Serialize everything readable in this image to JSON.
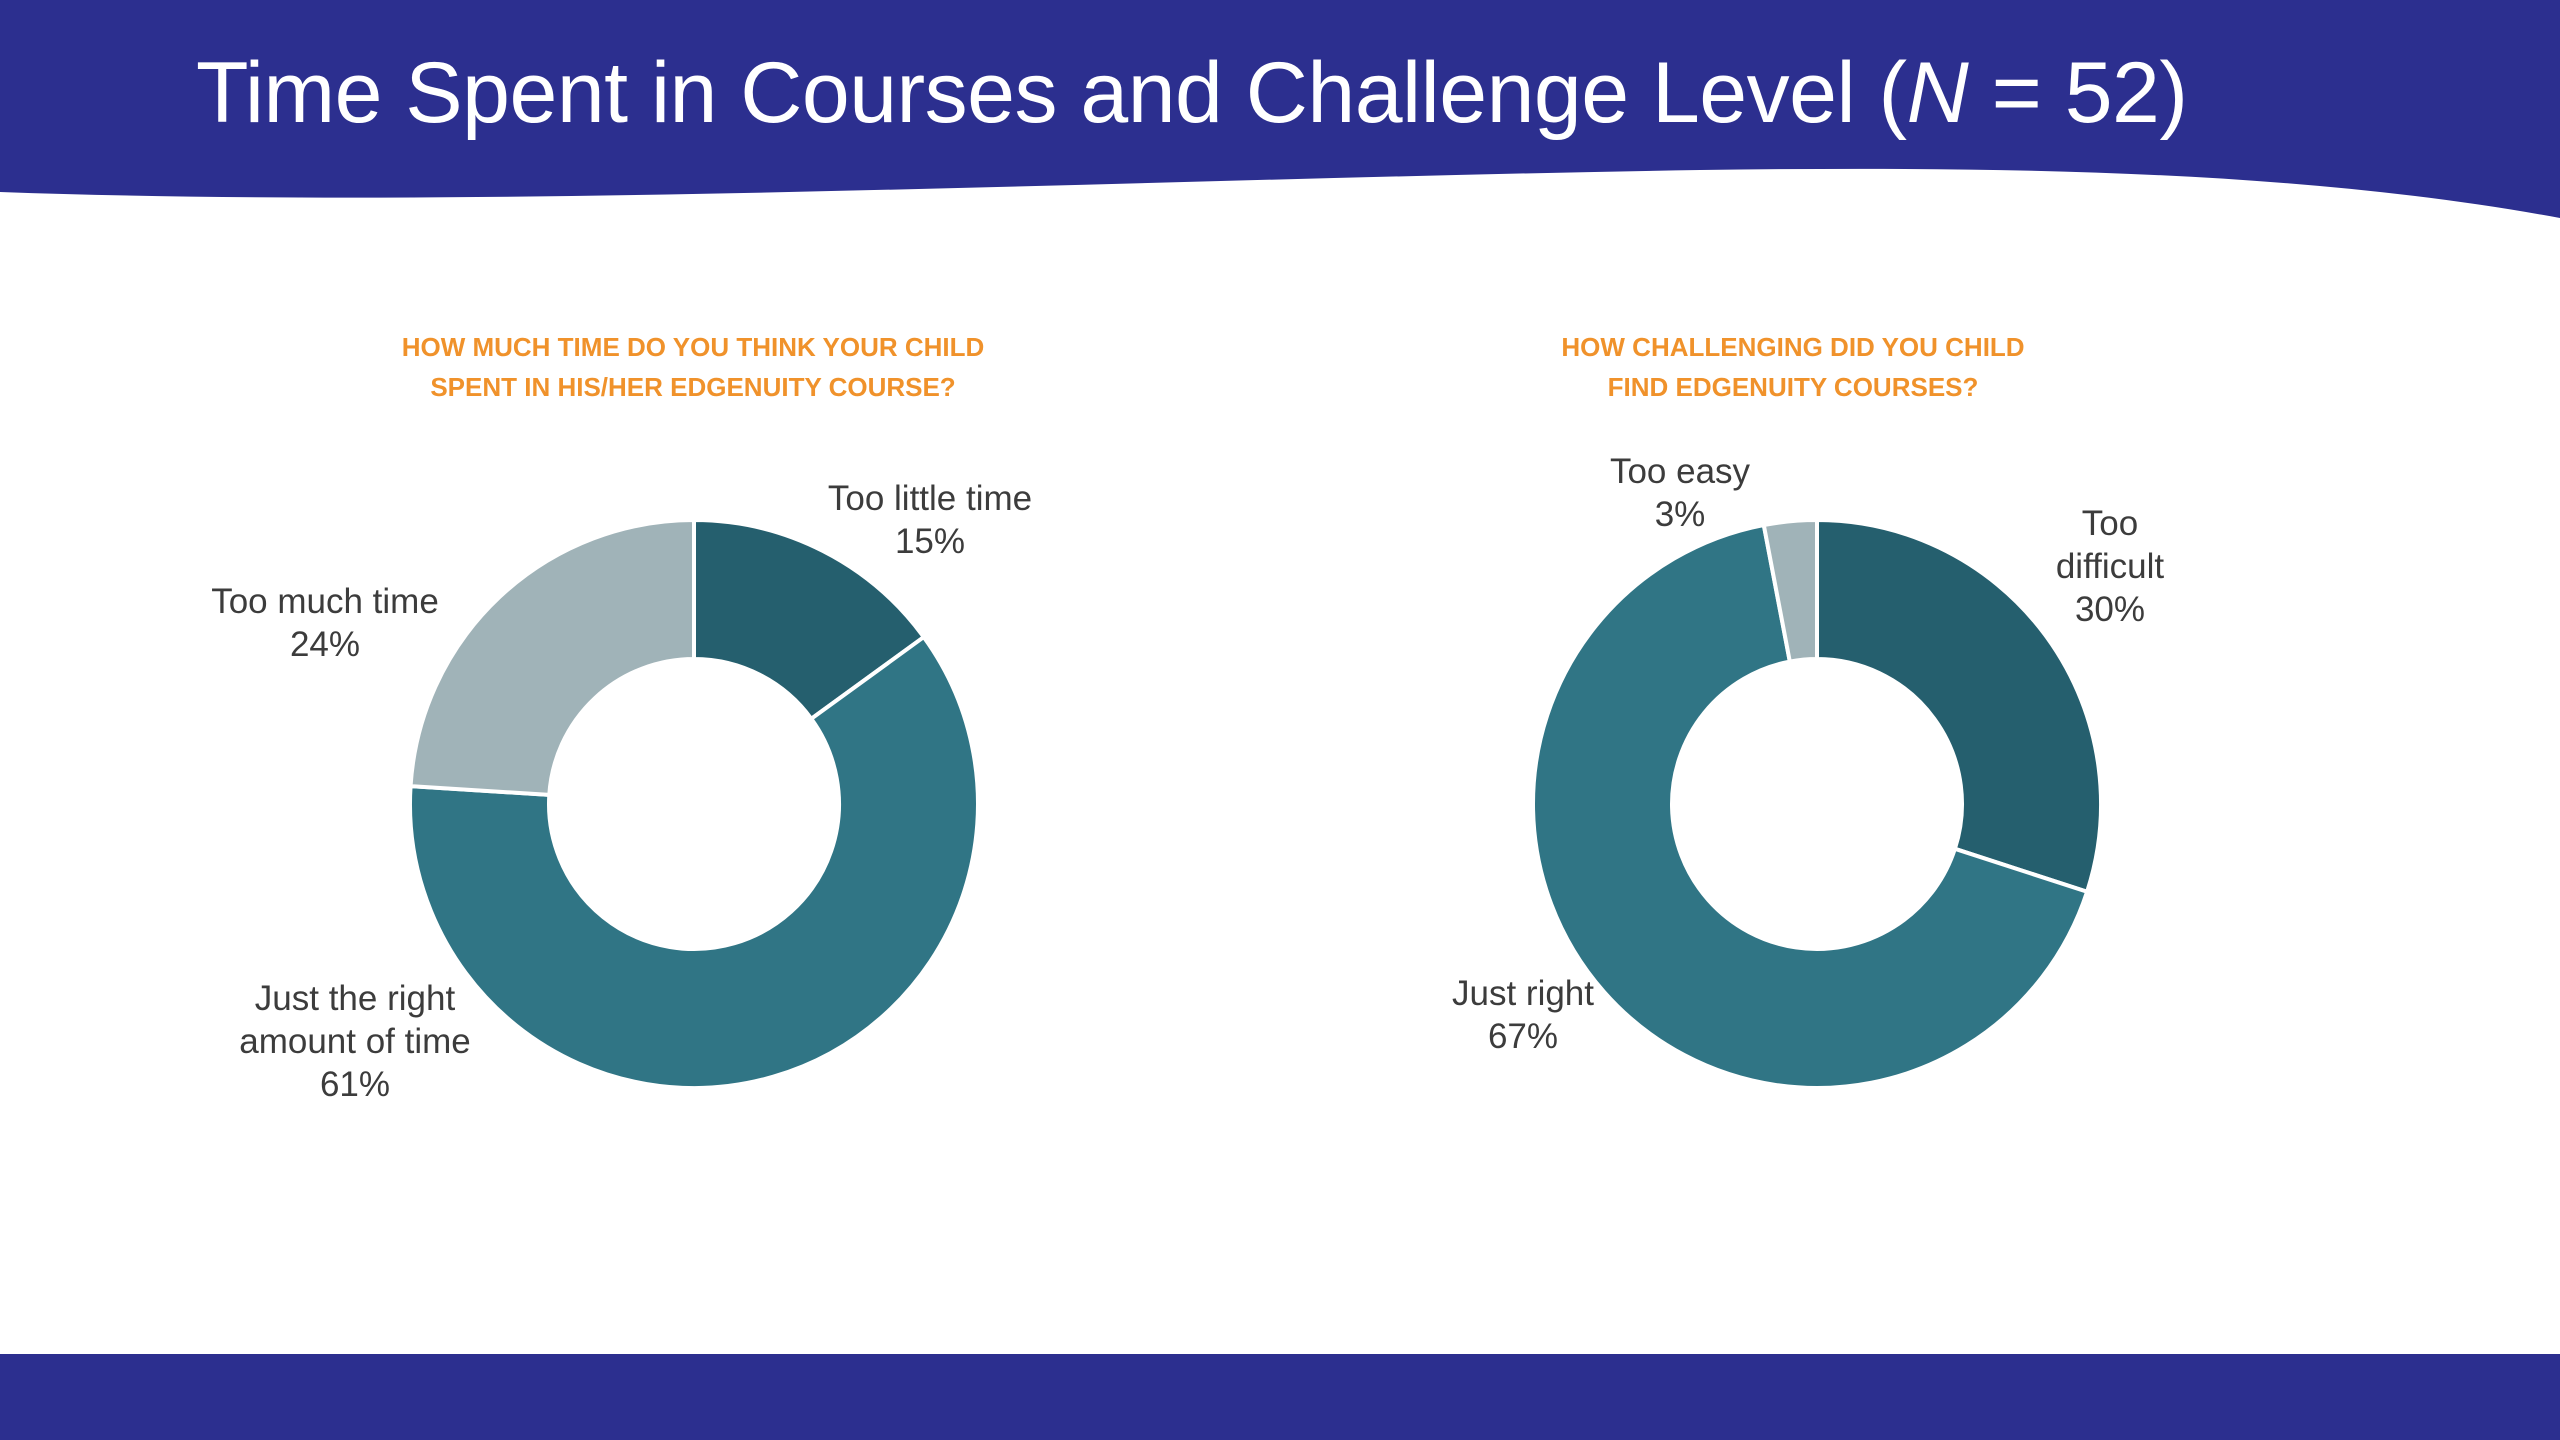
{
  "slide": {
    "title_prefix": "Time Spent in Courses and Challenge Level (",
    "title_n": "N",
    "title_suffix": " = 52)",
    "colors": {
      "header": "#2c2f8f",
      "question": "#f0922b",
      "dark_teal": "#255f6e",
      "mid_teal": "#307585",
      "light_gray": "#a0b3b8"
    }
  },
  "chart_data": [
    {
      "type": "pie",
      "style": "donut",
      "title": "HOW MUCH TIME DO YOU THINK YOUR CHILD\nSPENT IN HIS/HER EDGENUITY COURSE?",
      "categories": [
        "Too little time",
        "Just the right amount of time",
        "Too much time"
      ],
      "values": [
        15,
        61,
        24
      ],
      "unit": "%",
      "colors": [
        "#255f6e",
        "#307585",
        "#a0b3b8"
      ],
      "labels": [
        "Too little time\n15%",
        "Just the right\namount of time\n61%",
        "Too much time\n24%"
      ]
    },
    {
      "type": "pie",
      "style": "donut",
      "title": "HOW CHALLENGING DID YOU CHILD\nFIND EDGENUITY COURSES?",
      "categories": [
        "Too difficult",
        "Just right",
        "Too easy"
      ],
      "values": [
        30,
        67,
        3
      ],
      "unit": "%",
      "colors": [
        "#255f6e",
        "#307585",
        "#a0b3b8"
      ],
      "labels": [
        "Too\ndifficult\n30%",
        "Just right\n67%",
        "Too easy\n3%"
      ]
    }
  ]
}
